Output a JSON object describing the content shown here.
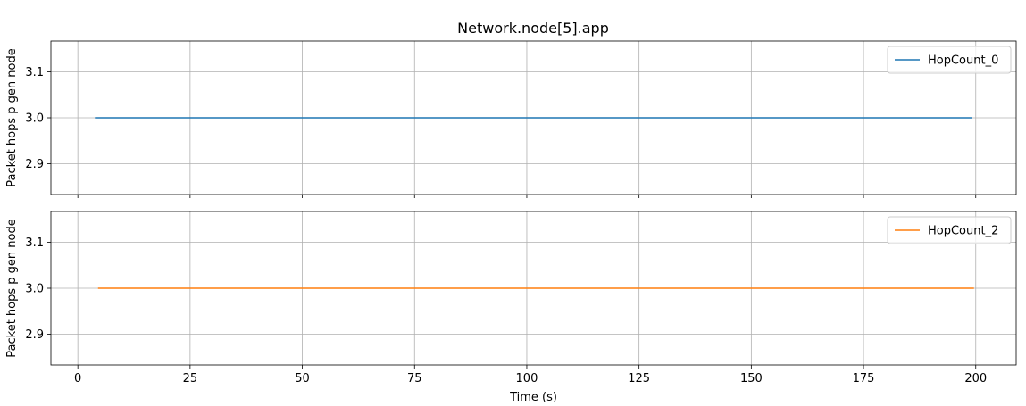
{
  "title": "Network.node[5].app",
  "chart_data": [
    {
      "type": "line",
      "title": "Network.node[5].app",
      "xlabel": "",
      "ylabel": "Packet hops p gen node",
      "xlim": [
        -6,
        209
      ],
      "ylim": [
        2.8333,
        3.1667
      ],
      "xticks": [
        0,
        25,
        50,
        75,
        100,
        125,
        150,
        175,
        200
      ],
      "yticks": [
        2.9,
        3.0,
        3.1
      ],
      "ytick_labels": [
        "2.9",
        "3.0",
        "3.1"
      ],
      "show_x_tick_labels": false,
      "grid": true,
      "legend": "top-right",
      "series": [
        {
          "name": "HopCount_0",
          "color": "#1f77b4",
          "x": [
            3.8,
            199.2
          ],
          "y": [
            3.0,
            3.0
          ]
        }
      ]
    },
    {
      "type": "line",
      "title": "",
      "xlabel": "Time (s)",
      "ylabel": "Packet hops p gen node",
      "xlim": [
        -6,
        209
      ],
      "ylim": [
        2.8333,
        3.1667
      ],
      "xticks": [
        0,
        25,
        50,
        75,
        100,
        125,
        150,
        175,
        200
      ],
      "xtick_labels": [
        "0",
        "25",
        "50",
        "75",
        "100",
        "125",
        "150",
        "175",
        "200"
      ],
      "yticks": [
        2.9,
        3.0,
        3.1
      ],
      "ytick_labels": [
        "2.9",
        "3.0",
        "3.1"
      ],
      "show_x_tick_labels": true,
      "grid": true,
      "legend": "top-right",
      "series": [
        {
          "name": "HopCount_2",
          "color": "#ff7f0e",
          "x": [
            4.5,
            199.6
          ],
          "y": [
            3.0,
            3.0
          ]
        }
      ]
    }
  ]
}
